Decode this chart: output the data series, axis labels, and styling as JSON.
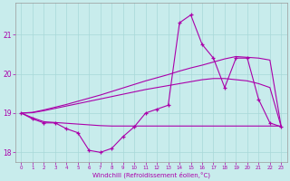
{
  "xlabel": "Windchill (Refroidissement éolien,°C)",
  "background_color": "#c8ecec",
  "grid_color": "#a8d8d8",
  "line_color": "#aa00aa",
  "x_hours": [
    0,
    1,
    2,
    3,
    4,
    5,
    6,
    7,
    8,
    9,
    10,
    11,
    12,
    13,
    14,
    15,
    16,
    17,
    18,
    19,
    20,
    21,
    22,
    23
  ],
  "series1": [
    19.0,
    18.85,
    18.75,
    18.75,
    18.6,
    18.5,
    18.05,
    18.0,
    18.1,
    18.4,
    18.65,
    19.0,
    19.1,
    19.2,
    21.3,
    21.5,
    20.75,
    20.4,
    19.65,
    20.4,
    20.4,
    19.35,
    18.75,
    18.65
  ],
  "series2": [
    19.0,
    18.88,
    18.78,
    18.76,
    18.74,
    18.72,
    18.7,
    18.68,
    18.67,
    18.67,
    18.67,
    18.67,
    18.67,
    18.67,
    18.67,
    18.67,
    18.67,
    18.67,
    18.67,
    18.67,
    18.67,
    18.67,
    18.67,
    18.67
  ],
  "series3": [
    19.0,
    19.01,
    19.06,
    19.12,
    19.18,
    19.24,
    19.3,
    19.36,
    19.42,
    19.48,
    19.54,
    19.6,
    19.65,
    19.7,
    19.75,
    19.8,
    19.85,
    19.88,
    19.88,
    19.85,
    19.82,
    19.75,
    19.65,
    18.65
  ],
  "series4": [
    19.0,
    19.02,
    19.08,
    19.15,
    19.22,
    19.3,
    19.38,
    19.46,
    19.55,
    19.64,
    19.73,
    19.82,
    19.9,
    19.98,
    20.07,
    20.15,
    20.22,
    20.3,
    20.38,
    20.44,
    20.42,
    20.4,
    20.35,
    18.65
  ],
  "ylim": [
    17.75,
    21.8
  ],
  "yticks": [
    18,
    19,
    20,
    21
  ],
  "xticks": [
    0,
    1,
    2,
    3,
    4,
    5,
    6,
    7,
    8,
    9,
    10,
    11,
    12,
    13,
    14,
    15,
    16,
    17,
    18,
    19,
    20,
    21,
    22,
    23
  ]
}
